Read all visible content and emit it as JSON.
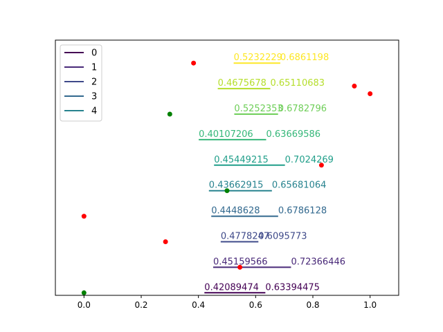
{
  "chart_data": {
    "type": "scatter",
    "xlim": [
      -0.1,
      1.1
    ],
    "ylim": [
      -0.1,
      9.9
    ],
    "x_ticks": [
      0.0,
      0.2,
      0.4,
      0.6,
      0.8,
      1.0
    ],
    "x_tick_labels": [
      "0.0",
      "0.2",
      "0.4",
      "0.6",
      "0.8",
      "1.0"
    ],
    "y_ticks_visible": false,
    "grid": false,
    "legend": {
      "placement": "upper-left",
      "entries": [
        "0",
        "1",
        "2",
        "3",
        "4"
      ]
    },
    "segments": [
      {
        "y": 0,
        "start": 0.42089474,
        "end": 0.63394475,
        "start_label": "0.42089474",
        "end_label": "0.63394475",
        "color": "#440154"
      },
      {
        "y": 1,
        "start": 0.45159566,
        "end": 0.72366446,
        "start_label": "0.45159566",
        "end_label": "0.72366446",
        "color": "#482878"
      },
      {
        "y": 2,
        "start": 0.4778247,
        "end": 0.6095773,
        "start_label": "0.4778247",
        "end_label": "0.6095773",
        "color": "#3e4989"
      },
      {
        "y": 3,
        "start": 0.4448628,
        "end": 0.6786128,
        "start_label": "0.4448628",
        "end_label": "0.6786128",
        "color": "#31688e"
      },
      {
        "y": 4,
        "start": 0.43662915,
        "end": 0.65681064,
        "start_label": "0.43662915",
        "end_label": "0.65681064",
        "color": "#26828e"
      },
      {
        "y": 5,
        "start": 0.45449215,
        "end": 0.7024269,
        "start_label": "0.45449215",
        "end_label": "0.7024269",
        "color": "#1f9e89"
      },
      {
        "y": 6,
        "start": 0.40107206,
        "end": 0.63669586,
        "start_label": "0.40107206",
        "end_label": "0.63669586",
        "color": "#35b779"
      },
      {
        "y": 7,
        "start": 0.5252353,
        "end": 0.6782796,
        "start_label": "0.5252353",
        "end_label": "0.6782796",
        "color": "#6ece58"
      },
      {
        "y": 8,
        "start": 0.4675678,
        "end": 0.65110683,
        "start_label": "0.4675678",
        "end_label": "0.65110683",
        "color": "#b5de2b"
      },
      {
        "y": 9,
        "start": 0.5232229,
        "end": 0.6861198,
        "start_label": "0.5232229",
        "end_label": "0.6861198",
        "color": "#fde725"
      }
    ],
    "points": [
      {
        "x": 0.0,
        "y": 0.0,
        "color": "green"
      },
      {
        "x": 0.5,
        "y": 4.0,
        "color": "green"
      },
      {
        "x": 0.3,
        "y": 7.0,
        "color": "green"
      },
      {
        "x": 0.0,
        "y": 3.0,
        "color": "red"
      },
      {
        "x": 0.285,
        "y": 2.0,
        "color": "red"
      },
      {
        "x": 0.545,
        "y": 1.0,
        "color": "red"
      },
      {
        "x": 0.383,
        "y": 9.0,
        "color": "red"
      },
      {
        "x": 0.83,
        "y": 5.0,
        "color": "red"
      },
      {
        "x": 0.945,
        "y": 8.1,
        "color": "red"
      },
      {
        "x": 1.0,
        "y": 7.8,
        "color": "red"
      }
    ]
  }
}
